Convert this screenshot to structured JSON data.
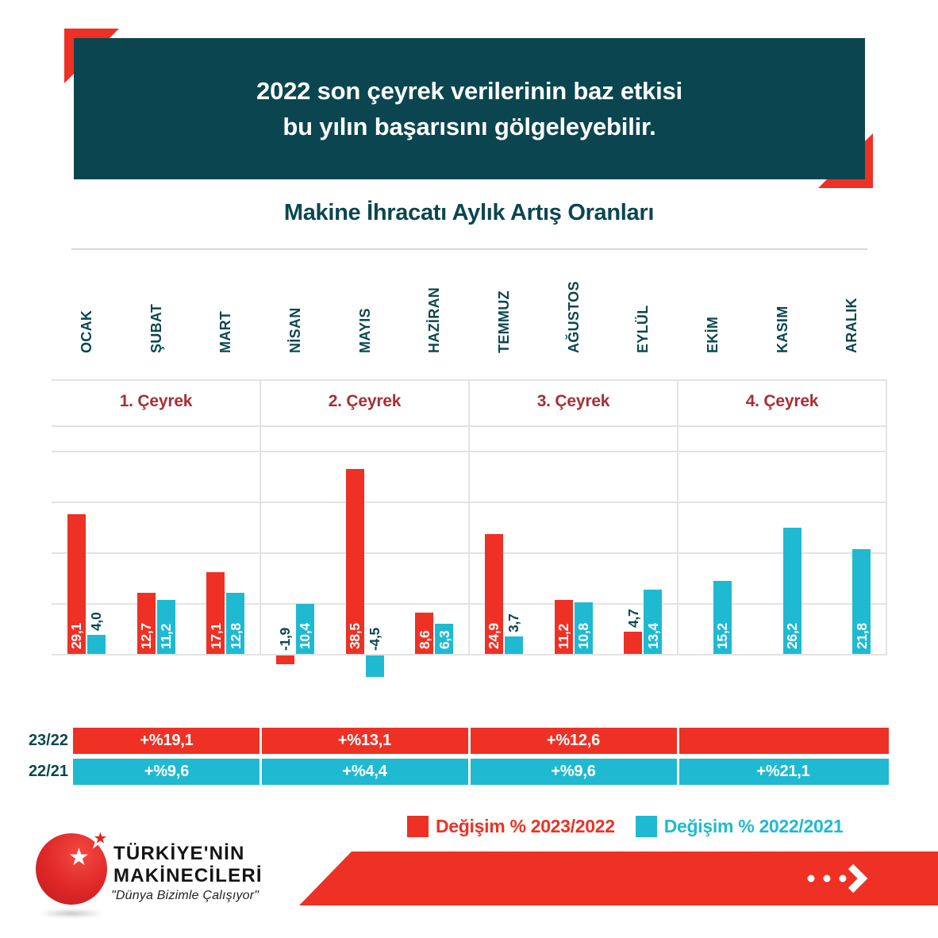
{
  "banner": {
    "line1": "2022 son çeyrek verilerinin baz etkisi",
    "line2": "bu yılın başarısını gölgeleyebilir."
  },
  "chart_title": "Makine İhracatı Aylık Artış Oranları",
  "chart_data": {
    "type": "bar",
    "categories": [
      "OCAK",
      "ŞUBAT",
      "MART",
      "NİSAN",
      "MAYIS",
      "HAZİRAN",
      "TEMMUZ",
      "AĞUSTOS",
      "EYLÜL",
      "EKİM",
      "KASIM",
      "ARALIK"
    ],
    "quarters": [
      "1. Çeyrek",
      "2. Çeyrek",
      "3. Çeyrek",
      "4. Çeyrek"
    ],
    "ylim": [
      -10,
      45
    ],
    "grid": true,
    "legend_position": "bottom",
    "series": [
      {
        "name": "Değişim % 2023/2022",
        "color": "#ee3124",
        "values": [
          29.1,
          12.7,
          17.1,
          -1.9,
          38.5,
          8.6,
          24.9,
          11.2,
          4.7,
          null,
          null,
          null
        ],
        "labels": [
          "29,1",
          "12,7",
          "17,1",
          "-1,9",
          "38,5",
          "8,6",
          "24,9",
          "11,2",
          "4,7",
          null,
          null,
          null
        ]
      },
      {
        "name": "Değişim % 2022/2021",
        "color": "#1fbad2",
        "values": [
          4.0,
          11.2,
          12.8,
          10.4,
          -4.5,
          6.3,
          3.7,
          10.8,
          13.4,
          15.2,
          26.2,
          21.8
        ],
        "labels": [
          "4,0",
          "11,2",
          "12,8",
          "10,4",
          "-4,5",
          "6,3",
          "3,7",
          "10,8",
          "13,4",
          "15,2",
          "26,2",
          "21,8"
        ]
      }
    ],
    "summary_rows": [
      {
        "label": "23/22",
        "color": "#ee3124",
        "cells": [
          "+%19,1",
          "+%13,1",
          "+%12,6",
          ""
        ]
      },
      {
        "label": "22/21",
        "color": "#1fbad2",
        "cells": [
          "+%9,6",
          "+%4,4",
          "+%9,6",
          "+%21,1"
        ]
      }
    ]
  },
  "legend": {
    "items": [
      {
        "label": "Değişim % 2023/2022",
        "color": "#ee3124"
      },
      {
        "label": "Değişim % 2022/2021",
        "color": "#1fbad2"
      }
    ]
  },
  "logo": {
    "name_line1": "TÜRKİYE'NİN",
    "name_line2": "MAKİNECİLERİ",
    "tagline": "\"Dünya Bizimle Çalışıyor\""
  },
  "colors": {
    "banner_bg": "#0b4650",
    "text_teal": "#0b4650",
    "quarter_red": "#a72f36",
    "red": "#ee3124",
    "cyan": "#1fbad2"
  }
}
